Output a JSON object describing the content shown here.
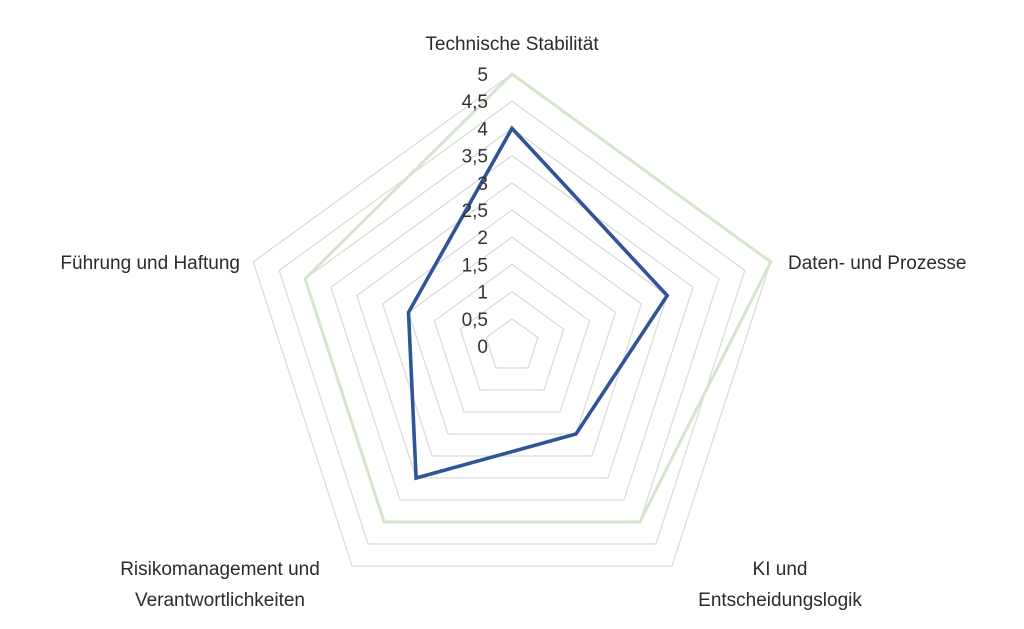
{
  "chart_data": {
    "type": "radar",
    "axes": [
      [
        "Technische Stabilität"
      ],
      [
        "Daten- und Prozesse"
      ],
      [
        "KI und",
        "Entscheidungslogik"
      ],
      [
        "Risikomanagement und",
        "Verantwortlichkeiten"
      ],
      [
        "Führung und Haftung"
      ]
    ],
    "tick_labels": [
      "0",
      "0,5",
      "1",
      "1,5",
      "2",
      "2,5",
      "3",
      "3,5",
      "4",
      "4,5",
      "5"
    ],
    "range": [
      0,
      5
    ],
    "series": [
      {
        "values": [
          5,
          5,
          4,
          4,
          4
        ],
        "color": "#d3e6cc"
      },
      {
        "values": [
          4,
          3,
          2,
          3,
          2
        ],
        "color": "#2e5597"
      }
    ],
    "grid_color": "#d9d9d9",
    "legend": "none"
  }
}
